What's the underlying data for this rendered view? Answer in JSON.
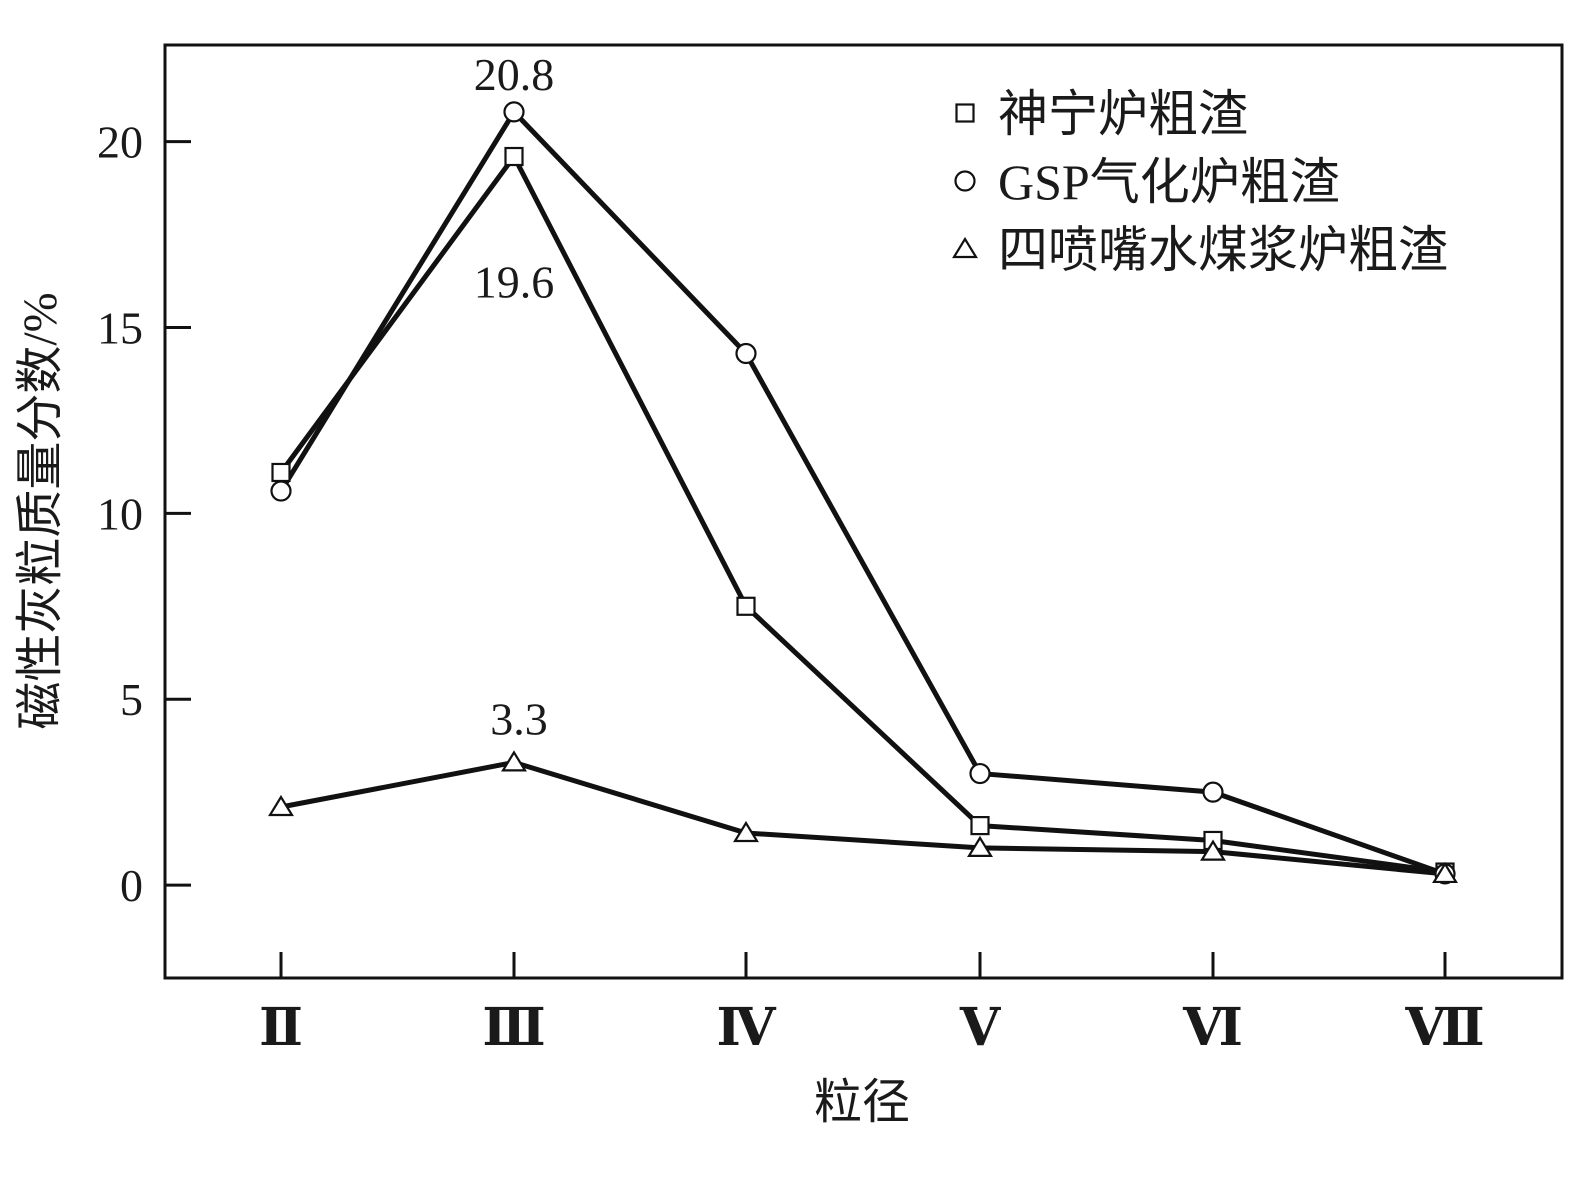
{
  "chart_data": {
    "type": "line",
    "categories": [
      "Ⅱ",
      "Ⅲ",
      "Ⅳ",
      "Ⅴ",
      "Ⅵ",
      "Ⅶ"
    ],
    "xlabel": "粒径",
    "ylabel": "磁性灰粒质量分数/%",
    "ylim": [
      -2.5,
      22.6
    ],
    "yticks": [
      0,
      5,
      10,
      15,
      20
    ],
    "grid": false,
    "legend_position": "top-right",
    "series": [
      {
        "name": "神宁炉粗渣",
        "marker": "square",
        "values": [
          11.1,
          19.6,
          7.5,
          1.6,
          1.2,
          0.35
        ]
      },
      {
        "name": "GSP气化炉粗渣",
        "marker": "circle",
        "values": [
          10.6,
          20.8,
          14.3,
          3.0,
          2.5,
          0.3
        ]
      },
      {
        "name": "四喷嘴水煤浆炉粗渣",
        "marker": "triangle",
        "values": [
          2.1,
          3.3,
          1.4,
          1.0,
          0.9,
          0.3
        ]
      }
    ],
    "annotations": [
      {
        "text": "20.8",
        "series": 1,
        "category": "Ⅲ"
      },
      {
        "text": "19.6",
        "series": 0,
        "category": "Ⅲ"
      },
      {
        "text": "3.3",
        "series": 2,
        "category": "Ⅲ"
      }
    ]
  }
}
